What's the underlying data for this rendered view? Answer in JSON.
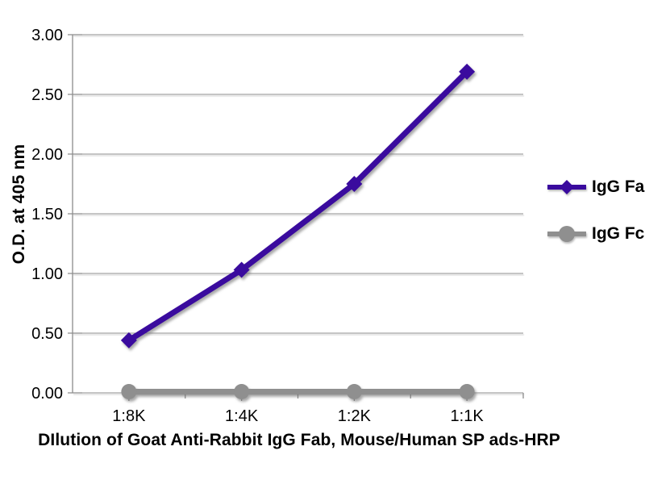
{
  "chart_data": {
    "type": "line",
    "title": "",
    "xlabel": "DIlution of Goat Anti-Rabbit IgG Fab, Mouse/Human SP ads-HRP",
    "ylabel": "O.D. at 405 nm",
    "categories": [
      "1:8K",
      "1:4K",
      "1:2K",
      "1:1K"
    ],
    "series": [
      {
        "name": "IgG Fab",
        "marker": "diamond",
        "color": "#3A0B9E",
        "values": [
          0.44,
          1.03,
          1.75,
          2.69
        ]
      },
      {
        "name": "IgG Fc",
        "marker": "circle",
        "color": "#8F8F8F",
        "values": [
          0.01,
          0.01,
          0.01,
          0.01
        ]
      }
    ],
    "ylim": [
      0,
      3
    ],
    "y_tick_labels": [
      "0.00",
      "0.50",
      "1.00",
      "1.50",
      "2.00",
      "2.50",
      "3.00"
    ],
    "grid": "horizontal",
    "legend_position": "right",
    "background_color": "#FFFFFF",
    "axis_color": "#8C8C8C",
    "text_color": "#000000"
  }
}
